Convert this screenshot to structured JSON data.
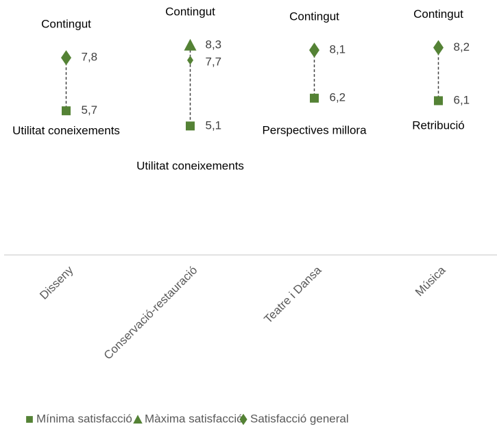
{
  "chart_data": {
    "type": "dot-range",
    "categories": [
      "Disseny",
      "Conservació-restauració",
      "Teatre i Dansa",
      "Música"
    ],
    "series": [
      {
        "name": "Mínima satisfacció",
        "marker": "square",
        "color": "#548235",
        "values": [
          5.7,
          5.1,
          6.2,
          6.1
        ],
        "value_labels": [
          "5,7",
          "5,1",
          "6,2",
          "6,1"
        ]
      },
      {
        "name": "Màxima satisfacció",
        "marker": "triangle",
        "color": "#548235",
        "values": [
          null,
          8.3,
          null,
          null
        ],
        "value_labels": [
          null,
          "8,3",
          null,
          null
        ]
      },
      {
        "name": "Satisfacció general",
        "marker": "diamond",
        "color": "#548235",
        "values": [
          7.8,
          7.7,
          8.1,
          8.2
        ],
        "value_labels": [
          "7,8",
          "7,7",
          "8,1",
          "8,2"
        ]
      }
    ],
    "annotations": [
      {
        "top": "Contingut",
        "bottom": "Utilitat coneixements"
      },
      {
        "top": "Contingut",
        "bottom": "Utilitat coneixements"
      },
      {
        "top": "Contingut",
        "bottom": "Perspectives millora"
      },
      {
        "top": "Contingut",
        "bottom": "Retribució"
      }
    ],
    "ylim": [
      0,
      9.5
    ],
    "legend": "bottom"
  }
}
